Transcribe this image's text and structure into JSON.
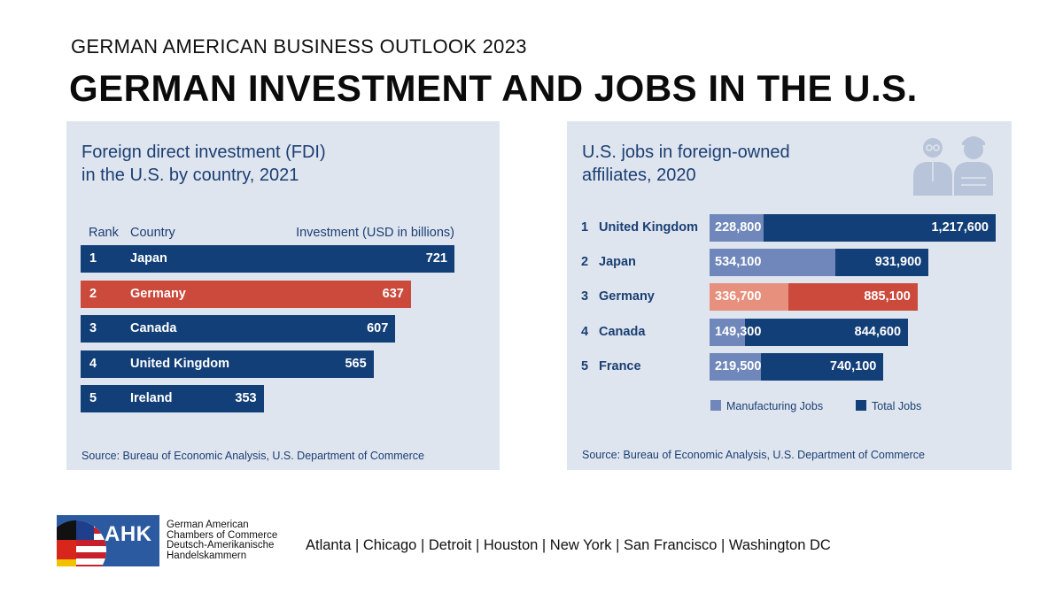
{
  "kicker": "GERMAN AMERICAN BUSINESS OUTLOOK 2023",
  "headline": "GERMAN INVESTMENT AND JOBS IN THE U.S.",
  "colors": {
    "navy": "#123f77",
    "red": "#cc4a3c",
    "light_blue": "#6f87ba",
    "salmon": "#e7907d",
    "panel_bg": "#dfe5ef",
    "title_blue": "#1a3f73"
  },
  "chart_data": [
    {
      "type": "bar",
      "title": "Foreign direct investment (FDI) in the U.S. by country, 2021",
      "title_lines": [
        "Foreign direct investment (FDI)",
        "in the U.S. by country, 2021"
      ],
      "headers": {
        "rank": "Rank",
        "country": "Country",
        "value": "Investment (USD in billions)"
      },
      "xlim": [
        0,
        721
      ],
      "rows": [
        {
          "rank": "1",
          "country": "Japan",
          "value": 721,
          "label": "721",
          "highlight": false
        },
        {
          "rank": "2",
          "country": "Germany",
          "value": 637,
          "label": "637",
          "highlight": true
        },
        {
          "rank": "3",
          "country": "Canada",
          "value": 607,
          "label": "607",
          "highlight": false
        },
        {
          "rank": "4",
          "country": "United Kingdom",
          "value": 565,
          "label": "565",
          "highlight": false
        },
        {
          "rank": "5",
          "country": "Ireland",
          "value": 353,
          "label": "353",
          "highlight": false
        }
      ],
      "source": "Source: Bureau of Economic Analysis, U.S. Department of Commerce"
    },
    {
      "type": "bar",
      "title": "U.S. jobs in foreign-owned affiliates, 2020",
      "title_lines": [
        "U.S. jobs in foreign-owned",
        "affiliates, 2020"
      ],
      "xlim": [
        0,
        1217600
      ],
      "series_names": {
        "manufacturing": "Manufacturing Jobs",
        "total": "Total Jobs"
      },
      "rows": [
        {
          "rank": "1",
          "country": "United Kingdom",
          "manufacturing": 228800,
          "manufacturing_label": "228,800",
          "total": 1217600,
          "total_label": "1,217,600",
          "highlight": false
        },
        {
          "rank": "2",
          "country": "Japan",
          "manufacturing": 534100,
          "manufacturing_label": "534,100",
          "total": 931900,
          "total_label": "931,900",
          "highlight": false
        },
        {
          "rank": "3",
          "country": "Germany",
          "manufacturing": 336700,
          "manufacturing_label": "336,700",
          "total": 885100,
          "total_label": "885,100",
          "highlight": true
        },
        {
          "rank": "4",
          "country": "Canada",
          "manufacturing": 149300,
          "manufacturing_label": "149,300",
          "total": 844600,
          "total_label": "844,600",
          "highlight": false
        },
        {
          "rank": "5",
          "country": "France",
          "manufacturing": 219500,
          "manufacturing_label": "219,500",
          "total": 740100,
          "total_label": "740,100",
          "highlight": false
        }
      ],
      "source": "Source: Bureau of Economic Analysis, U.S. Department of Commerce"
    }
  ],
  "footer": {
    "logo_text": "AHK",
    "org_lines": [
      "German American",
      "Chambers of Commerce",
      "Deutsch-Amerikanische",
      "Handelskammern"
    ],
    "cities": "Atlanta | Chicago | Detroit | Houston | New York | San Francisco | Washington DC"
  }
}
